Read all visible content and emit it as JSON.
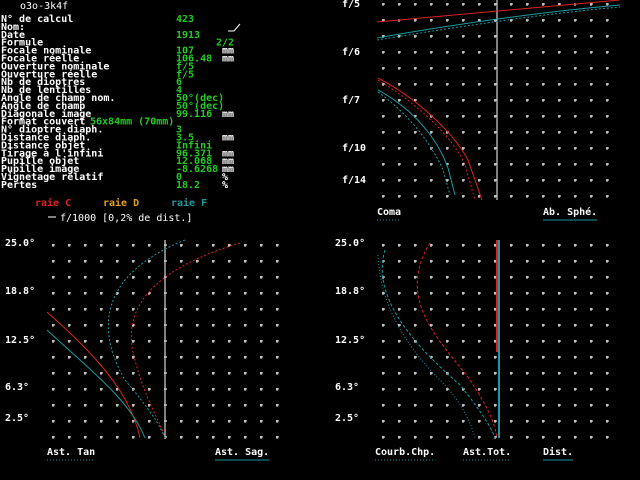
{
  "title": "o3o-3k4f",
  "parameters": [
    {
      "label": "N° de calcul",
      "value": "423"
    },
    {
      "label": "Nom:"
    },
    {
      "label": "Date",
      "value": "1913"
    },
    {
      "label": "Formule",
      "value": "2/2"
    },
    {
      "label": "Focale nominale",
      "value": "107",
      "unit": "mm"
    },
    {
      "label": "Focale réelle",
      "value": "106.48",
      "unit": "mm"
    },
    {
      "label": "Ouverture nominale",
      "value": "f/5"
    },
    {
      "label": "Ouverture réelle",
      "value": "f/5"
    },
    {
      "label": "Nb de dioptres",
      "value": "6"
    },
    {
      "label": "Nb de lentilles",
      "value": "4"
    },
    {
      "label": "Angle de champ nom.",
      "value": "50°(dec)"
    },
    {
      "label": "Angle de champ",
      "value": "50°(dec)"
    },
    {
      "label": "Diagonale image",
      "value": "99.116",
      "unit": "mm"
    },
    {
      "label": "Format couvert",
      "value": "56x84mm (70mm)"
    },
    {
      "label": "N° dioptre diaph.",
      "value": "3"
    },
    {
      "label": "Distance diaph.",
      "value": "3.5",
      "unit": "mm"
    },
    {
      "label": "Distance objet",
      "value": "Infini"
    },
    {
      "label": "Tirage à l'infini",
      "value": "96.371",
      "unit": "mm"
    },
    {
      "label": "Pupille objet",
      "value": "12.068",
      "unit": "mm"
    },
    {
      "label": "Pupille image",
      "value": "-8.6268",
      "unit": "mm"
    },
    {
      "label": "Vignetage relatif",
      "value": "0",
      "unit": "%"
    },
    {
      "label": "Pertes",
      "value": "18.2",
      "unit": "%"
    }
  ],
  "legend": {
    "items": [
      "raie C",
      "raie D",
      "raie F"
    ],
    "scale": "f/1000 [0,2% de dist.]"
  },
  "panels": [
    {
      "y_labels": [
        "f/5",
        "f/6",
        "f/7",
        "f/10",
        "f/14"
      ],
      "labels": [
        "Coma",
        "Ab. Sphé."
      ]
    },
    {
      "y_labels": [
        "25.0°",
        "18.8°",
        "12.5°",
        "6.3°",
        "2.5°"
      ],
      "labels": [
        "Ast. Tan",
        "Ast. Sag."
      ]
    },
    {
      "y_labels": [
        "25.0°",
        "18.8°",
        "12.5°",
        "6.3°",
        "2.5°"
      ],
      "labels": [
        "Courb.Chp.",
        "Ast.Tot.",
        "Dist."
      ]
    }
  ]
}
